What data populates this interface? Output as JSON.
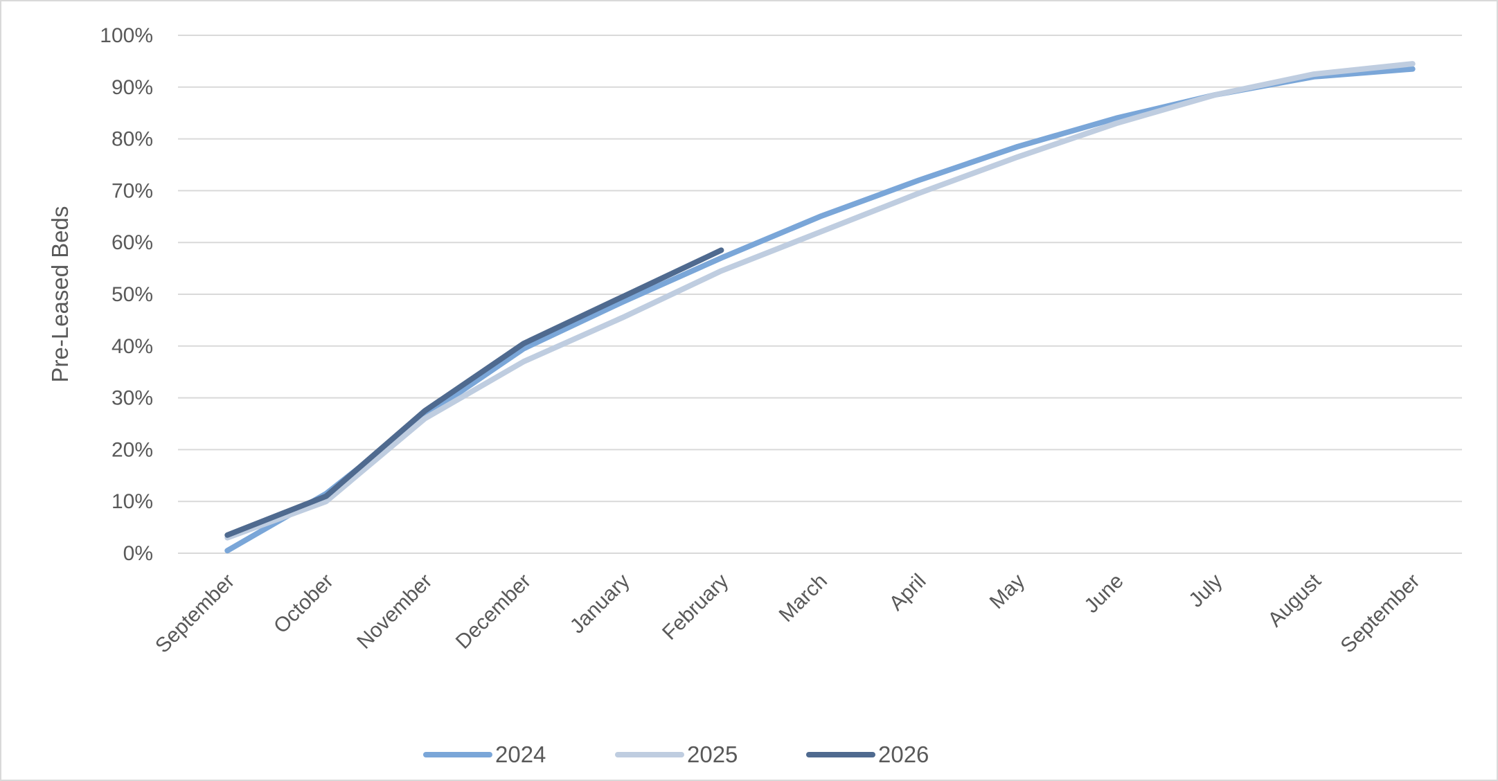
{
  "chart_data": {
    "type": "line",
    "y_label": "Pre-Leased Beds",
    "categories": [
      "September",
      "October",
      "November",
      "December",
      "January",
      "February",
      "March",
      "April",
      "May",
      "June",
      "July",
      "August",
      "September"
    ],
    "series": [
      {
        "name": "2024",
        "color": "#7aa6d8",
        "values": [
          0.5,
          11.5,
          26.5,
          39.5,
          48.5,
          57,
          65,
          72,
          78.5,
          84,
          88.5,
          92,
          93.5
        ]
      },
      {
        "name": "2025",
        "color": "#bfcde0",
        "values": [
          3,
          10,
          26,
          37,
          45.5,
          54.5,
          62,
          69.5,
          76.5,
          83,
          88.5,
          92.5,
          94.5
        ]
      },
      {
        "name": "2026",
        "color": "#4f6a8f",
        "values": [
          3.5,
          11,
          27.5,
          40.5,
          49.5,
          58.5,
          null,
          null,
          null,
          null,
          null,
          null,
          null
        ]
      }
    ],
    "ylim": [
      0,
      100
    ],
    "yticks": [
      {
        "value": 0,
        "label": "0%"
      },
      {
        "value": 10,
        "label": "10%"
      },
      {
        "value": 20,
        "label": "20%"
      },
      {
        "value": 30,
        "label": "30%"
      },
      {
        "value": 40,
        "label": "40%"
      },
      {
        "value": 50,
        "label": "50%"
      },
      {
        "value": 60,
        "label": "60%"
      },
      {
        "value": 70,
        "label": "70%"
      },
      {
        "value": 80,
        "label": "80%"
      },
      {
        "value": 90,
        "label": "90%"
      },
      {
        "value": 100,
        "label": "100%"
      }
    ],
    "grid": true,
    "legend": "bottom"
  }
}
